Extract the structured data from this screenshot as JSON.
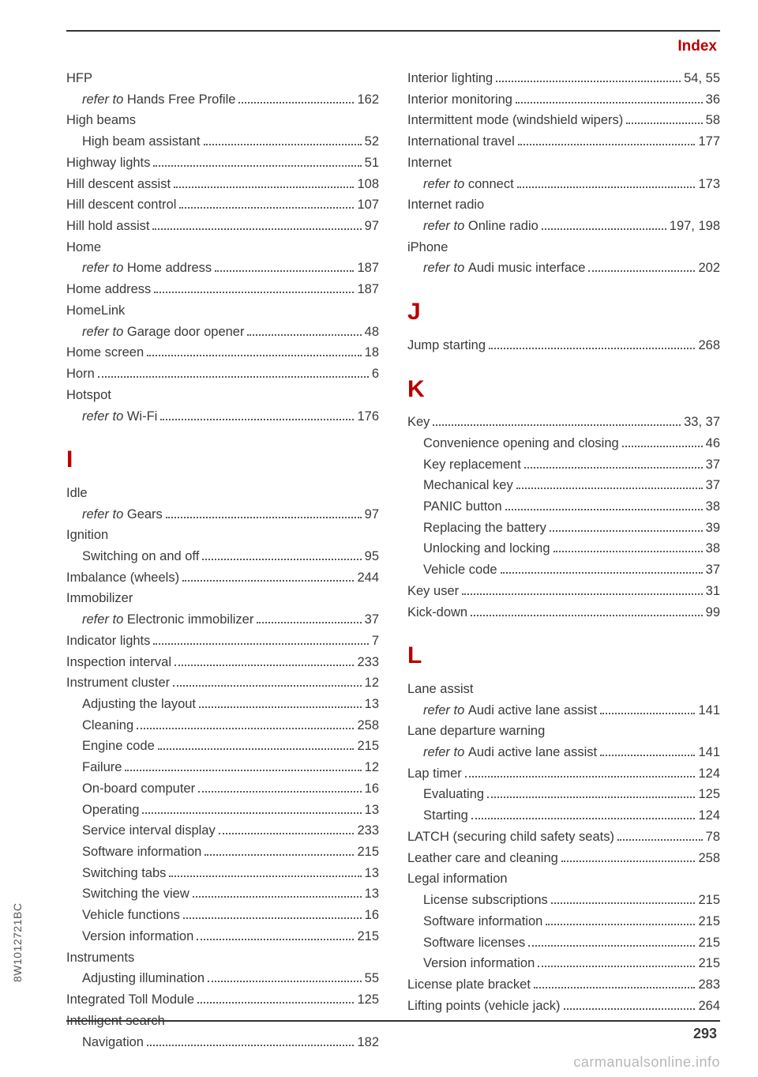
{
  "header": {
    "title": "Index"
  },
  "footer": {
    "page": "293",
    "spine": "8W1012721BC",
    "watermark": "carmanualsonline.info"
  },
  "colors": {
    "accent": "#b90000",
    "text": "#3a3a3a",
    "dots": "#595959",
    "watermark": "#b7b7b7",
    "rule": "#333333",
    "background": "#ffffff"
  },
  "typography": {
    "body_pt": 16.5,
    "header_pt": 19,
    "letter_pt": 30,
    "line_height": 1.62,
    "family": "Arial"
  },
  "left": [
    {
      "t": "h",
      "label": "HFP"
    },
    {
      "t": "s",
      "ref": "refer to ",
      "label": "Hands Free Profile",
      "page": "162"
    },
    {
      "t": "h",
      "label": "High beams"
    },
    {
      "t": "s",
      "label": "High beam assistant",
      "page": "52"
    },
    {
      "t": "e",
      "label": "Highway lights",
      "page": "51"
    },
    {
      "t": "e",
      "label": "Hill descent assist",
      "page": "108"
    },
    {
      "t": "e",
      "label": "Hill descent control",
      "page": "107"
    },
    {
      "t": "e",
      "label": "Hill hold assist",
      "page": "97"
    },
    {
      "t": "h",
      "label": "Home"
    },
    {
      "t": "s",
      "ref": "refer to ",
      "label": "Home address",
      "page": "187"
    },
    {
      "t": "e",
      "label": "Home address",
      "page": "187"
    },
    {
      "t": "h",
      "label": "HomeLink"
    },
    {
      "t": "s",
      "ref": "refer to ",
      "label": "Garage door opener",
      "page": "48"
    },
    {
      "t": "e",
      "label": "Home screen",
      "page": "18"
    },
    {
      "t": "e",
      "label": "Horn",
      "page": "6"
    },
    {
      "t": "h",
      "label": "Hotspot"
    },
    {
      "t": "s",
      "ref": "refer to ",
      "label": "Wi-Fi",
      "page": "176"
    },
    {
      "t": "L",
      "label": "I"
    },
    {
      "t": "h",
      "label": "Idle"
    },
    {
      "t": "s",
      "ref": "refer to ",
      "label": "Gears",
      "page": "97"
    },
    {
      "t": "h",
      "label": "Ignition"
    },
    {
      "t": "s",
      "label": "Switching on and off",
      "page": "95"
    },
    {
      "t": "e",
      "label": "Imbalance (wheels)",
      "page": "244"
    },
    {
      "t": "h",
      "label": "Immobilizer"
    },
    {
      "t": "s",
      "ref": "refer to ",
      "label": "Electronic immobilizer",
      "page": "37"
    },
    {
      "t": "e",
      "label": "Indicator lights",
      "page": "7"
    },
    {
      "t": "e",
      "label": "Inspection interval",
      "page": "233"
    },
    {
      "t": "e",
      "label": "Instrument cluster",
      "page": "12"
    },
    {
      "t": "s",
      "label": "Adjusting the layout",
      "page": "13"
    },
    {
      "t": "s",
      "label": "Cleaning",
      "page": "258"
    },
    {
      "t": "s",
      "label": "Engine code",
      "page": "215"
    },
    {
      "t": "s",
      "label": "Failure",
      "page": "12"
    },
    {
      "t": "s",
      "label": "On-board computer",
      "page": "16"
    },
    {
      "t": "s",
      "label": "Operating",
      "page": "13"
    },
    {
      "t": "s",
      "label": "Service interval display",
      "page": "233"
    },
    {
      "t": "s",
      "label": "Software information",
      "page": "215"
    },
    {
      "t": "s",
      "label": "Switching tabs",
      "page": "13"
    },
    {
      "t": "s",
      "label": "Switching the view",
      "page": "13"
    },
    {
      "t": "s",
      "label": "Vehicle functions",
      "page": "16"
    },
    {
      "t": "s",
      "label": "Version information",
      "page": "215"
    },
    {
      "t": "h",
      "label": "Instruments"
    },
    {
      "t": "s",
      "label": "Adjusting illumination",
      "page": "55"
    },
    {
      "t": "e",
      "label": "Integrated Toll Module",
      "page": "125"
    },
    {
      "t": "h",
      "label": "Intelligent search"
    },
    {
      "t": "s",
      "label": "Navigation",
      "page": "182"
    }
  ],
  "right": [
    {
      "t": "e",
      "label": "Interior lighting",
      "page": "54, 55"
    },
    {
      "t": "e",
      "label": "Interior monitoring",
      "page": "36"
    },
    {
      "t": "e",
      "label": "Intermittent mode (windshield wipers)",
      "page": "58"
    },
    {
      "t": "e",
      "label": "International travel",
      "page": "177"
    },
    {
      "t": "h",
      "label": "Internet"
    },
    {
      "t": "s",
      "ref": "refer to ",
      "label": "connect",
      "page": "173"
    },
    {
      "t": "h",
      "label": "Internet radio"
    },
    {
      "t": "s",
      "ref": "refer to ",
      "label": "Online radio",
      "page": "197, 198"
    },
    {
      "t": "h",
      "label": "iPhone"
    },
    {
      "t": "s",
      "ref": "refer to ",
      "label": "Audi music interface",
      "page": "202"
    },
    {
      "t": "L",
      "label": "J"
    },
    {
      "t": "e",
      "label": "Jump starting",
      "page": "268"
    },
    {
      "t": "L",
      "label": "K"
    },
    {
      "t": "e",
      "label": "Key",
      "page": "33, 37"
    },
    {
      "t": "s",
      "label": "Convenience opening and closing",
      "page": "46"
    },
    {
      "t": "s",
      "label": "Key replacement",
      "page": "37"
    },
    {
      "t": "s",
      "label": "Mechanical key",
      "page": "37"
    },
    {
      "t": "s",
      "label": "PANIC button",
      "page": "38"
    },
    {
      "t": "s",
      "label": "Replacing the battery",
      "page": "39"
    },
    {
      "t": "s",
      "label": "Unlocking and locking",
      "page": "38"
    },
    {
      "t": "s",
      "label": "Vehicle code",
      "page": "37"
    },
    {
      "t": "e",
      "label": "Key user",
      "page": "31"
    },
    {
      "t": "e",
      "label": "Kick-down",
      "page": "99"
    },
    {
      "t": "L",
      "label": "L"
    },
    {
      "t": "h",
      "label": "Lane assist"
    },
    {
      "t": "s",
      "ref": "refer to ",
      "label": "Audi active lane assist",
      "page": "141"
    },
    {
      "t": "h",
      "label": "Lane departure warning"
    },
    {
      "t": "s",
      "ref": "refer to ",
      "label": "Audi active lane assist",
      "page": "141"
    },
    {
      "t": "e",
      "label": "Lap timer",
      "page": "124"
    },
    {
      "t": "s",
      "label": "Evaluating",
      "page": "125"
    },
    {
      "t": "s",
      "label": "Starting",
      "page": "124"
    },
    {
      "t": "e",
      "label": "LATCH (securing child safety seats)",
      "page": "78"
    },
    {
      "t": "e",
      "label": "Leather care and cleaning",
      "page": "258"
    },
    {
      "t": "h",
      "label": "Legal information"
    },
    {
      "t": "s",
      "label": "License subscriptions",
      "page": "215"
    },
    {
      "t": "s",
      "label": "Software information",
      "page": "215"
    },
    {
      "t": "s",
      "label": "Software licenses",
      "page": "215"
    },
    {
      "t": "s",
      "label": "Version information",
      "page": "215"
    },
    {
      "t": "e",
      "label": "License plate bracket",
      "page": "283"
    },
    {
      "t": "e",
      "label": "Lifting points (vehicle jack)",
      "page": "264"
    }
  ]
}
